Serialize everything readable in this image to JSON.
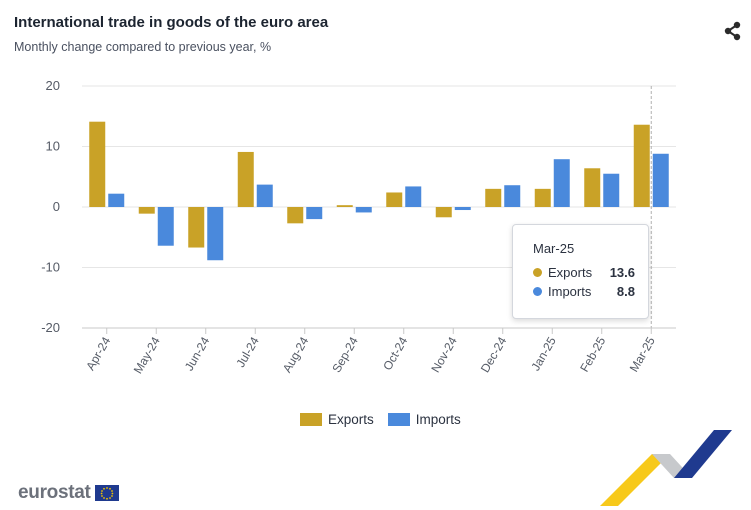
{
  "header": {
    "title": "International trade in goods of the euro area",
    "subtitle": "Monthly change compared to previous year, %"
  },
  "colors": {
    "exports": "#c9a227",
    "imports": "#4a89dc",
    "grid": "#e6e6e6",
    "crosshair": "#b0b0b0"
  },
  "icons": {
    "share": "share-icon"
  },
  "chart_data": {
    "type": "bar",
    "categories": [
      "Apr-24",
      "May-24",
      "Jun-24",
      "Jul-24",
      "Aug-24",
      "Sep-24",
      "Oct-24",
      "Nov-24",
      "Dec-24",
      "Jan-25",
      "Feb-25",
      "Mar-25"
    ],
    "series": [
      {
        "name": "Exports",
        "values": [
          14.1,
          -1.1,
          -6.7,
          9.1,
          -2.7,
          0.3,
          2.4,
          -1.7,
          3.0,
          3.0,
          6.4,
          13.6
        ]
      },
      {
        "name": "Imports",
        "values": [
          2.2,
          -6.4,
          -8.8,
          3.7,
          -2.0,
          -0.9,
          3.4,
          -0.5,
          3.6,
          7.9,
          5.5,
          8.8
        ]
      }
    ],
    "yticks": [
      20,
      10,
      0,
      -10,
      -20
    ],
    "ylim": [
      -20,
      20
    ],
    "grid": true,
    "legend_position": "bottom-center",
    "tooltip": {
      "category": "Mar-25",
      "items": [
        {
          "name": "Exports",
          "value": "13.6"
        },
        {
          "name": "Imports",
          "value": "8.8"
        }
      ]
    }
  },
  "branding": {
    "logo_text": "eurostat"
  }
}
